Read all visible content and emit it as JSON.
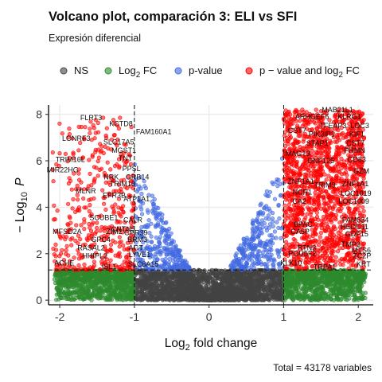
{
  "chart_data": {
    "type": "scatter",
    "title": "Volcano plot, comparación 3: ELI vs SFI",
    "subtitle": "Expresión diferencial",
    "xlabel_main": "Log",
    "xlabel_sub": "2",
    "xlabel_rest": " fold change",
    "ylabel_main": "− Log",
    "ylabel_sub": "10",
    "ylabel_var": "P",
    "caption": "Total = 43178 variables",
    "xlim": [
      -2.15,
      2.2
    ],
    "ylim": [
      -0.2,
      8.4
    ],
    "x_ticks": [
      -2,
      -1,
      0,
      1,
      2
    ],
    "x_tick_labels": [
      "-2",
      "-1",
      "0",
      "1",
      "2"
    ],
    "y_ticks": [
      0,
      2,
      4,
      6,
      8
    ],
    "y_tick_labels": [
      "0",
      "2",
      "4",
      "6",
      "8"
    ],
    "fc_cutoff": 1,
    "p_cutoff_log10": 1.3,
    "legend": [
      {
        "key": "NS",
        "label": "NS",
        "color": "#444444"
      },
      {
        "key": "FC",
        "label_main": "Log",
        "label_sub": "2",
        "label_rest": " FC",
        "color": "#2e8b2e"
      },
      {
        "key": "P",
        "label": "p-value",
        "color": "#4169e1"
      },
      {
        "key": "FCP",
        "label_main": "p − value and log",
        "label_sub": "2",
        "label_rest": " FC",
        "color": "#ff0000"
      }
    ],
    "gene_labels": [
      {
        "text": "FLRT3",
        "x": -1.58,
        "y": 7.75
      },
      {
        "text": "KCTD8",
        "x": -1.18,
        "y": 7.5
      },
      {
        "text": "FAM160A1",
        "x": -0.74,
        "y": 7.15
      },
      {
        "text": "LONRF3",
        "x": -1.78,
        "y": 6.85
      },
      {
        "text": "SLC17A5",
        "x": -1.21,
        "y": 6.7
      },
      {
        "text": "MGST1",
        "x": -1.14,
        "y": 6.35
      },
      {
        "text": "TRIM16L",
        "x": -1.86,
        "y": 5.95
      },
      {
        "text": "TNT",
        "x": -1.12,
        "y": 6.0
      },
      {
        "text": "MIR22HG",
        "x": -1.96,
        "y": 5.5
      },
      {
        "text": "PPSL",
        "x": -1.04,
        "y": 5.55
      },
      {
        "text": "NRK",
        "x": -1.31,
        "y": 5.2
      },
      {
        "text": "GRB14",
        "x": -0.96,
        "y": 5.2
      },
      {
        "text": "TRIM16",
        "x": -1.16,
        "y": 4.9
      },
      {
        "text": "MLNR",
        "x": -1.65,
        "y": 4.6
      },
      {
        "text": "EFR3B",
        "x": -1.27,
        "y": 4.4
      },
      {
        "text": "ATP1A1",
        "x": -0.97,
        "y": 4.25
      },
      {
        "text": "SCUBE1",
        "x": -1.41,
        "y": 3.45
      },
      {
        "text": "CALR",
        "x": -1.02,
        "y": 3.35
      },
      {
        "text": "MFSD2A",
        "x": -1.9,
        "y": 2.85
      },
      {
        "text": "CNTN5",
        "x": -1.15,
        "y": 2.95
      },
      {
        "text": "GPR39",
        "x": -0.98,
        "y": 2.8
      },
      {
        "text": "ZIM2",
        "x": -1.27,
        "y": 2.85
      },
      {
        "text": "GPC4",
        "x": -1.45,
        "y": 2.5
      },
      {
        "text": "BRM3",
        "x": -0.96,
        "y": 2.5
      },
      {
        "text": "RASAL2",
        "x": -1.58,
        "y": 2.15
      },
      {
        "text": "AGT",
        "x": -0.98,
        "y": 2.15
      },
      {
        "text": "HHIPL2",
        "x": -1.53,
        "y": 1.8
      },
      {
        "text": "LYVE1",
        "x": -0.93,
        "y": 1.85
      },
      {
        "text": "ISL1",
        "x": -1.34,
        "y": 1.35
      },
      {
        "text": "SLC6A15",
        "x": -0.88,
        "y": 1.45
      },
      {
        "text": "ACHE",
        "x": -1.94,
        "y": 1.5
      },
      {
        "text": "MAB21L1",
        "x": 1.72,
        "y": 8.1
      },
      {
        "text": "ARHGEF6",
        "x": 1.38,
        "y": 7.8
      },
      {
        "text": "KLRG1",
        "x": 1.88,
        "y": 7.8
      },
      {
        "text": "TFEAP3",
        "x": 1.66,
        "y": 7.4
      },
      {
        "text": "LOC3",
        "x": 2.02,
        "y": 7.4
      },
      {
        "text": "CST7",
        "x": 1.18,
        "y": 7.2
      },
      {
        "text": "PIK3IP1",
        "x": 1.51,
        "y": 7.05
      },
      {
        "text": "KIF1",
        "x": 1.98,
        "y": 7.05
      },
      {
        "text": "STAP1",
        "x": 1.45,
        "y": 6.65
      },
      {
        "text": "CST7",
        "x": 1.96,
        "y": 6.65
      },
      {
        "text": "MAGT3",
        "x": 1.19,
        "y": 6.2
      },
      {
        "text": "PRMN",
        "x": 1.95,
        "y": 6.35
      },
      {
        "text": "DNF125",
        "x": 1.5,
        "y": 5.9
      },
      {
        "text": "CD83",
        "x": 1.98,
        "y": 5.95
      },
      {
        "text": "GZM",
        "x": 2.04,
        "y": 5.45
      },
      {
        "text": "ZNF1A1",
        "x": 1.23,
        "y": 5.0
      },
      {
        "text": "TRIM9",
        "x": 1.55,
        "y": 4.85
      },
      {
        "text": "ZNF1A1",
        "x": 1.96,
        "y": 4.9
      },
      {
        "text": "NCR1",
        "x": 1.25,
        "y": 4.55
      },
      {
        "text": "LOC1019",
        "x": 1.97,
        "y": 4.5
      },
      {
        "text": "CA2",
        "x": 1.21,
        "y": 4.15
      },
      {
        "text": "LOC1009",
        "x": 1.94,
        "y": 4.15
      },
      {
        "text": "FAM834",
        "x": 1.96,
        "y": 3.35
      },
      {
        "text": "BPAC",
        "x": 1.26,
        "y": 3.15
      },
      {
        "text": "HEDC11",
        "x": 1.95,
        "y": 3.05
      },
      {
        "text": "CA5P",
        "x": 1.22,
        "y": 2.85
      },
      {
        "text": "GDF15",
        "x": 1.98,
        "y": 2.75
      },
      {
        "text": "TMP3",
        "x": 1.9,
        "y": 2.3
      },
      {
        "text": "RTN3",
        "x": 1.31,
        "y": 2.15
      },
      {
        "text": "MTS6",
        "x": 2.04,
        "y": 2.05
      },
      {
        "text": "POU5F2",
        "x": 1.25,
        "y": 1.9
      },
      {
        "text": "ZC2P",
        "x": 2.05,
        "y": 1.8
      },
      {
        "text": "KLK10",
        "x": 1.1,
        "y": 1.5
      },
      {
        "text": "TRPA1",
        "x": 1.55,
        "y": 1.32
      },
      {
        "text": "KRT",
        "x": 2.07,
        "y": 1.45
      }
    ]
  }
}
